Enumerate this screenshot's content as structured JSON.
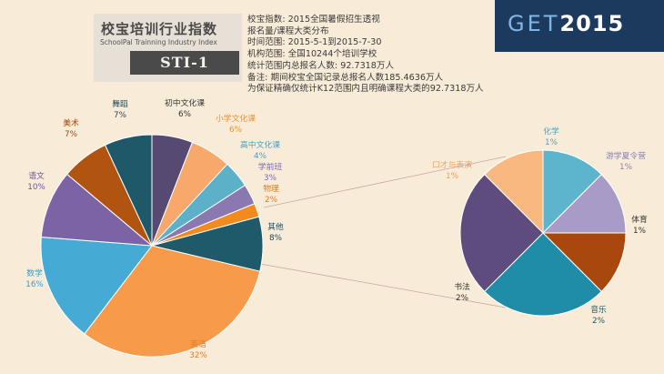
{
  "logo": {
    "title": "校宝培训行业指数",
    "subtitle": "SchoolPal Trainning Industry Index",
    "code": "STI-1"
  },
  "brand": {
    "get_letters": "GET",
    "year": "2015"
  },
  "info_lines": [
    "校宝指数:  2015全国暑假招生透视",
    "                  报名量/课程大类分布",
    "时间范围:  2015-5-1到2015-7-30",
    "机构范围:  全国10244个培训学校",
    "统计范围内总报名人数:  92.7318万人",
    "备注:  期间校宝全国记录总报名人数185.4636万人",
    "            为保证精确仅统计K12范围内且明确课程大类的92.7318万人"
  ],
  "chart_data": [
    {
      "type": "pie",
      "title": "",
      "slices": [
        {
          "label": "初中文化课",
          "value": 6,
          "display": "6%",
          "color": "#564a73",
          "label_color": "#333333"
        },
        {
          "label": "小学文化课",
          "value": 6,
          "display": "6%",
          "color": "#f7a86a",
          "label_color": "#e8902e"
        },
        {
          "label": "高中文化课",
          "value": 4,
          "display": "4%",
          "color": "#5cb0c8",
          "label_color": "#4a9fbf"
        },
        {
          "label": "学前班",
          "value": 3,
          "display": "3%",
          "color": "#8a78b0",
          "label_color": "#7e6aa6"
        },
        {
          "label": "物理",
          "value": 2,
          "display": "2%",
          "color": "#f28a1e",
          "label_color": "#e37a10"
        },
        {
          "label": "其他",
          "value": 8,
          "display": "8%",
          "color": "#1e5a6a",
          "label_color": "#1e4a5a"
        },
        {
          "label": "英语",
          "value": 32,
          "display": "32%",
          "color": "#f79a4a",
          "label_color": "#e07e2a"
        },
        {
          "label": "数学",
          "value": 16,
          "display": "16%",
          "color": "#45aad4",
          "label_color": "#3a9ac8"
        },
        {
          "label": "语文",
          "value": 10,
          "display": "10%",
          "color": "#7c63a6",
          "label_color": "#6e5596"
        },
        {
          "label": "美术",
          "value": 7,
          "display": "7%",
          "color": "#b05410",
          "label_color": "#a04a0c"
        },
        {
          "label": "舞蹈",
          "value": 7,
          "display": "7%",
          "color": "#1f5868",
          "label_color": "#1f4a5a"
        }
      ]
    },
    {
      "type": "pie",
      "title": "",
      "slices": [
        {
          "label": "化学",
          "value": 1,
          "display": "1%",
          "color": "#5cb5cc",
          "label_color": "#4aa3c4"
        },
        {
          "label": "游学夏令营",
          "value": 1,
          "display": "1%",
          "color": "#a99bc8",
          "label_color": "#8c80b6"
        },
        {
          "label": "体育",
          "value": 1,
          "display": "1%",
          "color": "#a8480e",
          "label_color": "#333333"
        },
        {
          "label": "音乐",
          "value": 2,
          "display": "2%",
          "color": "#1f8ca8",
          "label_color": "#1f5a6a"
        },
        {
          "label": "书法",
          "value": 2,
          "display": "2%",
          "color": "#5e4c7e",
          "label_color": "#333333"
        },
        {
          "label": "口才与表演",
          "value": 1,
          "display": "1%",
          "color": "#f8b880",
          "label_color": "#e8a060"
        }
      ]
    }
  ]
}
